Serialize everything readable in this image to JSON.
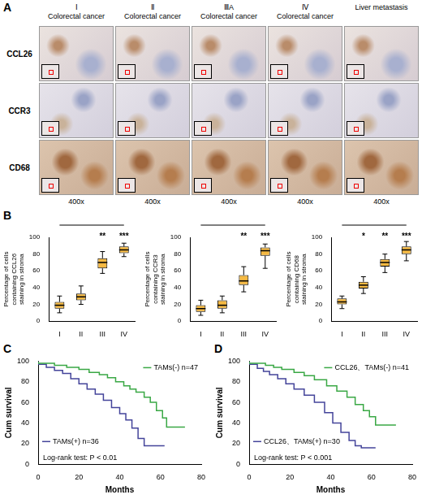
{
  "panel_a": {
    "panel": "A",
    "type": "image_grid",
    "columns": [
      {
        "stage": "Ⅰ",
        "tissue": "Colorectal cancer",
        "magnification": "400x"
      },
      {
        "stage": "Ⅱ",
        "tissue": "Colorectal cancer",
        "magnification": "400x"
      },
      {
        "stage": "ⅢA",
        "tissue": "Colorectal cancer",
        "magnification": "400x"
      },
      {
        "stage": "Ⅳ",
        "tissue": "Colorectal cancer",
        "magnification": "400x"
      },
      {
        "tissue": "Liver metastasis",
        "magnification": "400x"
      }
    ],
    "rows": [
      "CCL26",
      "CCR3",
      "CD68"
    ]
  },
  "chart_data": [
    {
      "panel": "B",
      "type": "box",
      "categories": [
        "I",
        "II",
        "III",
        "IV"
      ],
      "boxes": [
        {
          "min": 10,
          "q1": 15,
          "median": 19,
          "q3": 23,
          "max": 30
        },
        {
          "min": 20,
          "q1": 25,
          "median": 29,
          "q3": 33,
          "max": 42
        },
        {
          "min": 57,
          "q1": 63,
          "median": 70,
          "q3": 75,
          "max": 83
        },
        {
          "min": 77,
          "q1": 81,
          "median": 85,
          "q3": 89,
          "max": 93
        }
      ],
      "color": "#f5b942",
      "y_label": [
        "Percentage of cells",
        "containing CCL26",
        "staining in stroma"
      ],
      "ylim": [
        0,
        100
      ],
      "yticks": [
        0,
        20,
        40,
        60,
        80,
        100
      ],
      "grid": false,
      "significance": [
        null,
        null,
        "**",
        "***"
      ]
    },
    {
      "type": "box",
      "categories": [
        "I",
        "II",
        "III",
        "IV"
      ],
      "boxes": [
        {
          "min": 7,
          "q1": 11,
          "median": 15,
          "q3": 19,
          "max": 25
        },
        {
          "min": 10,
          "q1": 15,
          "median": 19,
          "q3": 25,
          "max": 30
        },
        {
          "min": 35,
          "q1": 43,
          "median": 48,
          "q3": 55,
          "max": 65
        },
        {
          "min": 63,
          "q1": 78,
          "median": 84,
          "q3": 88,
          "max": 92
        }
      ],
      "color": "#f5b942",
      "y_label": [
        "Percentage of cells",
        "containing CCR3",
        "staining in stroma"
      ],
      "ylim": [
        0,
        100
      ],
      "yticks": [
        0,
        20,
        40,
        60,
        80,
        100
      ],
      "grid": false,
      "significance": [
        null,
        null,
        "**",
        "***"
      ]
    },
    {
      "type": "box",
      "categories": [
        "I",
        "II",
        "III",
        "IV"
      ],
      "boxes": [
        {
          "min": 15,
          "q1": 20,
          "median": 23,
          "q3": 27,
          "max": 30
        },
        {
          "min": 33,
          "q1": 39,
          "median": 43,
          "q3": 47,
          "max": 53
        },
        {
          "min": 58,
          "q1": 65,
          "median": 70,
          "q3": 74,
          "max": 80
        },
        {
          "min": 72,
          "q1": 80,
          "median": 85,
          "q3": 89,
          "max": 95
        }
      ],
      "color": "#f5b942",
      "y_label": [
        "Percentage of cells",
        "containing CD68",
        "staining in stroma"
      ],
      "ylim": [
        0,
        100
      ],
      "yticks": [
        0,
        20,
        40,
        60,
        80,
        100
      ],
      "grid": false,
      "significance": [
        null,
        "*",
        "**",
        "***"
      ]
    },
    {
      "panel": "C",
      "type": "line",
      "x_label": "Months",
      "y_label": "Cum survival",
      "xlim": [
        0,
        80
      ],
      "xticks": [
        0,
        20,
        40,
        60,
        80
      ],
      "ylim": [
        0,
        100
      ],
      "yticks": [
        0,
        20,
        40,
        60,
        80,
        100
      ],
      "grid": false,
      "annotations": [
        "Log-rank test: P < 0.01"
      ],
      "series": [
        {
          "name": "TAMs(-) n=47",
          "color": "#3aa845",
          "line_style": "step",
          "x": [
            0,
            8,
            14,
            20,
            25,
            30,
            34,
            38,
            42,
            45,
            48,
            52,
            55,
            58,
            61,
            63,
            66,
            72
          ],
          "values": [
            100,
            98,
            96,
            94,
            92,
            89,
            87,
            84,
            80,
            76,
            73,
            70,
            65,
            60,
            52,
            45,
            36,
            36
          ]
        },
        {
          "name": "TAMs(+) n=36",
          "color": "#44449a",
          "line_style": "step",
          "x": [
            0,
            4,
            8,
            12,
            16,
            20,
            24,
            28,
            32,
            36,
            40,
            43,
            46,
            49,
            52,
            54,
            62
          ],
          "values": [
            100,
            97,
            94,
            91,
            88,
            83,
            78,
            73,
            68,
            62,
            55,
            49,
            43,
            35,
            25,
            18,
            18
          ]
        }
      ]
    },
    {
      "panel": "D",
      "type": "line",
      "x_label": "Months",
      "y_label": "Cum survival",
      "xlim": [
        0,
        80
      ],
      "xticks": [
        0,
        20,
        40,
        60,
        80
      ],
      "ylim": [
        0,
        100
      ],
      "yticks": [
        0,
        20,
        40,
        60,
        80,
        100
      ],
      "grid": false,
      "annotations": [
        "Log-rank test: P < 0.001"
      ],
      "series": [
        {
          "name": "CCL26、TAMs(-) n=41",
          "color": "#3aa845",
          "line_style": "step",
          "x": [
            0,
            8,
            12,
            16,
            22,
            27,
            32,
            38,
            43,
            48,
            52,
            56,
            59,
            62,
            66,
            72
          ],
          "values": [
            100,
            98,
            96,
            94,
            92,
            89,
            86,
            82,
            76,
            71,
            65,
            58,
            52,
            46,
            38,
            38
          ]
        },
        {
          "name": "CCL26、TAMs(+) n=30",
          "color": "#44449a",
          "line_style": "step",
          "x": [
            0,
            4,
            7,
            10,
            14,
            18,
            22,
            27,
            32,
            37,
            41,
            45,
            49,
            52,
            55,
            58,
            62
          ],
          "values": [
            100,
            97,
            93,
            90,
            87,
            83,
            78,
            73,
            67,
            60,
            50,
            40,
            31,
            23,
            18,
            16,
            16
          ]
        }
      ]
    }
  ]
}
